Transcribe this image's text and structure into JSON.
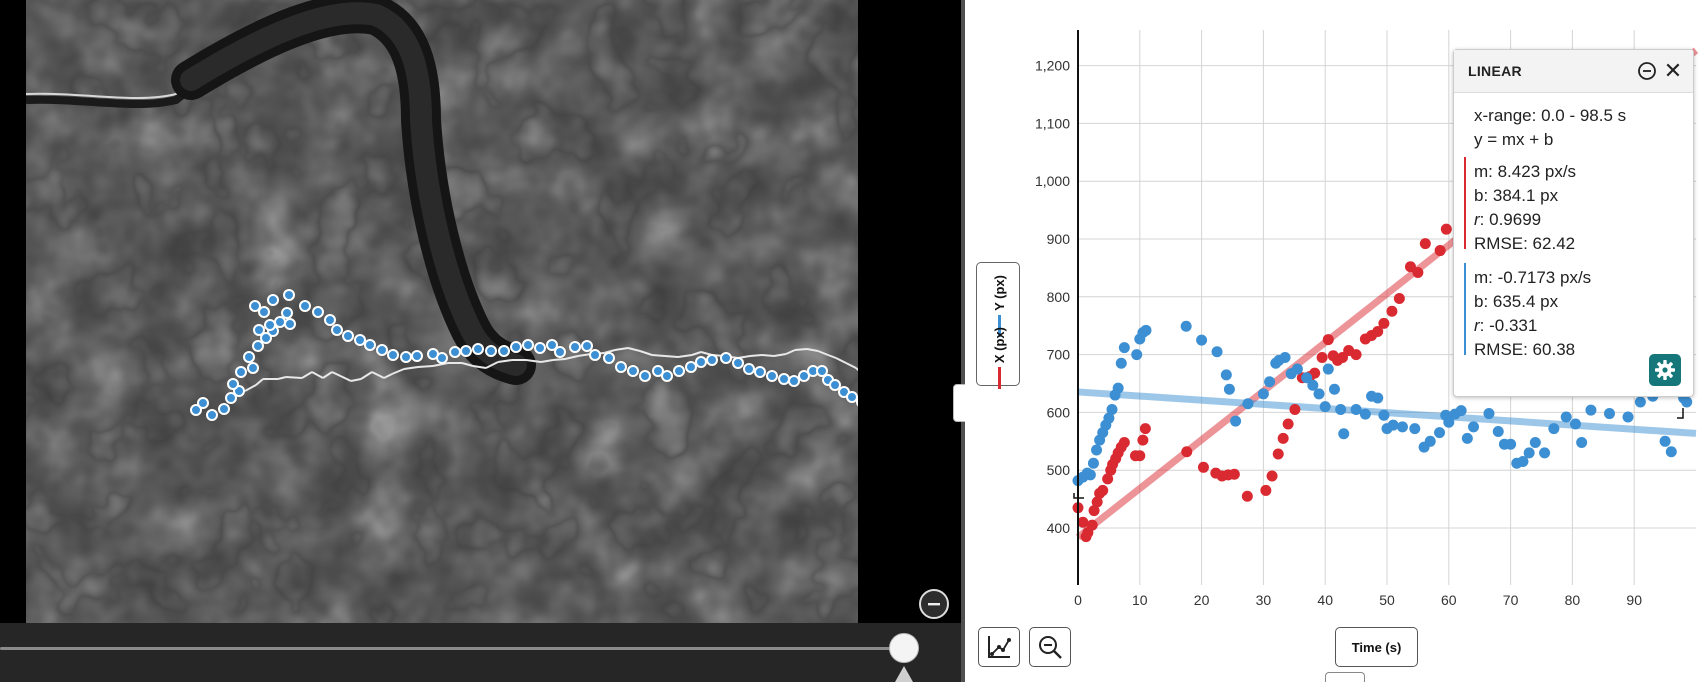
{
  "video": {
    "trail_points": [
      [
        245,
        391
      ],
      [
        256,
        385
      ],
      [
        263,
        379
      ],
      [
        278,
        379
      ],
      [
        286,
        377
      ],
      [
        302,
        378
      ],
      [
        312,
        372
      ],
      [
        323,
        378
      ],
      [
        332,
        372
      ],
      [
        351,
        381
      ],
      [
        361,
        379
      ],
      [
        372,
        372
      ],
      [
        384,
        378
      ],
      [
        392,
        374
      ],
      [
        404,
        369
      ],
      [
        418,
        367
      ],
      [
        433,
        366
      ],
      [
        448,
        363
      ],
      [
        462,
        363
      ],
      [
        473,
        366
      ],
      [
        486,
        368
      ],
      [
        498,
        362
      ],
      [
        512,
        360
      ],
      [
        526,
        360
      ],
      [
        541,
        362
      ],
      [
        553,
        360
      ],
      [
        565,
        359
      ],
      [
        578,
        356
      ],
      [
        591,
        354
      ],
      [
        604,
        353
      ],
      [
        615,
        350
      ],
      [
        628,
        348
      ],
      [
        640,
        351
      ],
      [
        652,
        355
      ],
      [
        665,
        356
      ],
      [
        678,
        357
      ],
      [
        692,
        355
      ],
      [
        701,
        352
      ],
      [
        712,
        355
      ],
      [
        724,
        356
      ],
      [
        738,
        358
      ],
      [
        750,
        356
      ],
      [
        762,
        355
      ],
      [
        774,
        356
      ],
      [
        786,
        354
      ],
      [
        795,
        350
      ],
      [
        807,
        349
      ],
      [
        818,
        351
      ],
      [
        828,
        355
      ],
      [
        836,
        358
      ],
      [
        846,
        363
      ],
      [
        856,
        368
      ],
      [
        865,
        376
      ]
    ],
    "scatter_points": [
      [
        196,
        410
      ],
      [
        203,
        403
      ],
      [
        212,
        415
      ],
      [
        224,
        409
      ],
      [
        231,
        398
      ],
      [
        239,
        391
      ],
      [
        233,
        384
      ],
      [
        241,
        372
      ],
      [
        253,
        368
      ],
      [
        249,
        357
      ],
      [
        258,
        346
      ],
      [
        266,
        338
      ],
      [
        273,
        331
      ],
      [
        259,
        330
      ],
      [
        270,
        325
      ],
      [
        280,
        322
      ],
      [
        290,
        324
      ],
      [
        287,
        313
      ],
      [
        264,
        312
      ],
      [
        255,
        306
      ],
      [
        273,
        300
      ],
      [
        289,
        295
      ],
      [
        305,
        306
      ],
      [
        318,
        312
      ],
      [
        330,
        320
      ],
      [
        337,
        330
      ],
      [
        348,
        336
      ],
      [
        360,
        340
      ],
      [
        370,
        345
      ],
      [
        382,
        350
      ],
      [
        393,
        355
      ],
      [
        406,
        357
      ],
      [
        417,
        356
      ],
      [
        433,
        354
      ],
      [
        442,
        358
      ],
      [
        455,
        352
      ],
      [
        466,
        351
      ],
      [
        478,
        349
      ],
      [
        491,
        351
      ],
      [
        504,
        351
      ],
      [
        516,
        347
      ],
      [
        528,
        345
      ],
      [
        540,
        348
      ],
      [
        552,
        345
      ],
      [
        560,
        352
      ],
      [
        575,
        347
      ],
      [
        587,
        346
      ],
      [
        595,
        355
      ],
      [
        609,
        358
      ],
      [
        621,
        367
      ],
      [
        633,
        371
      ],
      [
        645,
        376
      ],
      [
        658,
        371
      ],
      [
        667,
        376
      ],
      [
        679,
        371
      ],
      [
        691,
        367
      ],
      [
        701,
        362
      ],
      [
        712,
        360
      ],
      [
        726,
        358
      ],
      [
        738,
        363
      ],
      [
        749,
        369
      ],
      [
        760,
        372
      ],
      [
        772,
        376
      ],
      [
        784,
        379
      ],
      [
        794,
        381
      ],
      [
        804,
        376
      ],
      [
        813,
        371
      ],
      [
        822,
        371
      ],
      [
        828,
        380
      ],
      [
        835,
        385
      ],
      [
        844,
        392
      ],
      [
        852,
        397
      ],
      [
        862,
        402
      ]
    ]
  },
  "scrubber": {
    "position": 0.985
  },
  "graph": {
    "legend": [
      {
        "label": "Y (px)",
        "color": "#3c8fd2"
      },
      {
        "label": "X (px)",
        "color": "#d92a32"
      }
    ],
    "x_axis_button": "Time (s)",
    "y_ticks": [
      "400",
      "500",
      "600",
      "700",
      "800",
      "900",
      "1,000",
      "1,100",
      "1,200"
    ],
    "x_ticks": [
      "0",
      "10",
      "20",
      "30",
      "40",
      "50",
      "60",
      "70",
      "80",
      "90"
    ]
  },
  "chart_data": {
    "type": "scatter",
    "xlabel": "Time (s)",
    "ylabel": "",
    "xlim": [
      0,
      98.5
    ],
    "ylim": [
      325,
      1240
    ],
    "grid": true,
    "series": [
      {
        "name": "X (px)",
        "color": "#d92a32",
        "points": [
          [
            0,
            435
          ],
          [
            0.8,
            410
          ],
          [
            1.3,
            385
          ],
          [
            1.6,
            392
          ],
          [
            2.3,
            405
          ],
          [
            2.6,
            430
          ],
          [
            3.1,
            445
          ],
          [
            3.5,
            460
          ],
          [
            4,
            465
          ],
          [
            4.8,
            485
          ],
          [
            5.3,
            500
          ],
          [
            5.6,
            510
          ],
          [
            6.1,
            520
          ],
          [
            6.5,
            530
          ],
          [
            7,
            540
          ],
          [
            7.5,
            548
          ],
          [
            9.3,
            525
          ],
          [
            10,
            525
          ],
          [
            10.5,
            552
          ],
          [
            10.9,
            572
          ],
          [
            17.6,
            532
          ],
          [
            20.3,
            505
          ],
          [
            22.3,
            495
          ],
          [
            23.3,
            490
          ],
          [
            24.3,
            492
          ],
          [
            25.3,
            493
          ],
          [
            27.4,
            455
          ],
          [
            30.4,
            465
          ],
          [
            31.4,
            490
          ],
          [
            32.4,
            528
          ],
          [
            33.2,
            555
          ],
          [
            34,
            580
          ],
          [
            35.1,
            605
          ],
          [
            36.3,
            660
          ],
          [
            37.5,
            662
          ],
          [
            38.3,
            668
          ],
          [
            39.5,
            695
          ],
          [
            40.5,
            726
          ],
          [
            41.3,
            698
          ],
          [
            42,
            690
          ],
          [
            42.8,
            695
          ],
          [
            43.8,
            707
          ],
          [
            45,
            700
          ],
          [
            46.5,
            727
          ],
          [
            47.5,
            733
          ],
          [
            48.5,
            740
          ],
          [
            49.5,
            754
          ],
          [
            50.8,
            775
          ],
          [
            52,
            797
          ],
          [
            53.8,
            852
          ],
          [
            55,
            842
          ],
          [
            56.2,
            892
          ],
          [
            58.6,
            880
          ],
          [
            59.6,
            917
          ],
          [
            62.4,
            952
          ],
          [
            98.5,
            1185
          ]
        ]
      },
      {
        "name": "Y (px)",
        "color": "#3c8fd2",
        "points": [
          [
            0,
            482
          ],
          [
            0.8,
            488
          ],
          [
            1.5,
            495
          ],
          [
            2,
            492
          ],
          [
            2.5,
            512
          ],
          [
            3,
            535
          ],
          [
            3.5,
            552
          ],
          [
            4,
            565
          ],
          [
            4.5,
            578
          ],
          [
            5,
            590
          ],
          [
            5.5,
            605
          ],
          [
            6,
            630
          ],
          [
            6.5,
            642
          ],
          [
            7,
            685
          ],
          [
            7.5,
            712
          ],
          [
            9.5,
            700
          ],
          [
            10,
            727
          ],
          [
            10.5,
            738
          ],
          [
            11,
            742
          ],
          [
            17.5,
            749
          ],
          [
            20,
            725
          ],
          [
            22.5,
            705
          ],
          [
            24,
            665
          ],
          [
            24.5,
            640
          ],
          [
            25.5,
            585
          ],
          [
            27.5,
            615
          ],
          [
            30,
            632
          ],
          [
            31,
            653
          ],
          [
            32,
            685
          ],
          [
            32.5,
            690
          ],
          [
            33.5,
            695
          ],
          [
            34.5,
            667
          ],
          [
            35.5,
            675
          ],
          [
            37,
            660
          ],
          [
            38,
            647
          ],
          [
            39,
            632
          ],
          [
            40,
            610
          ],
          [
            40.5,
            675
          ],
          [
            41.5,
            640
          ],
          [
            42.5,
            605
          ],
          [
            43,
            563
          ],
          [
            45,
            605
          ],
          [
            46.5,
            597
          ],
          [
            47.5,
            628
          ],
          [
            48.5,
            625
          ],
          [
            49.5,
            595
          ],
          [
            50,
            572
          ],
          [
            51,
            578
          ],
          [
            52.5,
            575
          ],
          [
            54.5,
            572
          ],
          [
            56,
            540
          ],
          [
            57,
            550
          ],
          [
            58.5,
            565
          ],
          [
            59.5,
            595
          ],
          [
            60,
            583
          ],
          [
            61,
            597
          ],
          [
            62,
            603
          ],
          [
            63,
            555
          ],
          [
            64,
            575
          ],
          [
            66.5,
            598
          ],
          [
            68,
            567
          ],
          [
            69,
            545
          ],
          [
            70,
            545
          ],
          [
            71,
            512
          ],
          [
            72,
            515
          ],
          [
            73,
            530
          ],
          [
            74,
            548
          ],
          [
            75.5,
            530
          ],
          [
            77,
            572
          ],
          [
            79,
            592
          ],
          [
            80.5,
            580
          ],
          [
            81.5,
            548
          ],
          [
            83,
            604
          ],
          [
            86,
            598
          ],
          [
            89,
            592
          ],
          [
            91,
            618
          ],
          [
            93,
            628
          ],
          [
            95,
            550
          ],
          [
            96,
            532
          ],
          [
            98,
            625
          ],
          [
            98.5,
            618
          ]
        ]
      }
    ],
    "fits": [
      {
        "series": "X (px)",
        "m": 8.423,
        "b": 384.1
      },
      {
        "series": "Y (px)",
        "m": -0.7173,
        "b": 635.4
      }
    ]
  },
  "fit_panel": {
    "title": "LINEAR",
    "x_range": "x-range: 0.0 - 98.5 s",
    "equation": "y = mx + b",
    "series": [
      {
        "color": "#d92a32",
        "m": "m: 8.423 px/s",
        "b": "b: 384.1 px",
        "r_label": "r",
        "r": ": 0.9699",
        "rmse": "RMSE: 62.42"
      },
      {
        "color": "#3c8fd2",
        "m": "m: -0.7173 px/s",
        "b": "b: 635.4 px",
        "r_label": "r",
        "r": ": -0.331",
        "rmse": "RMSE: 60.38"
      }
    ]
  }
}
